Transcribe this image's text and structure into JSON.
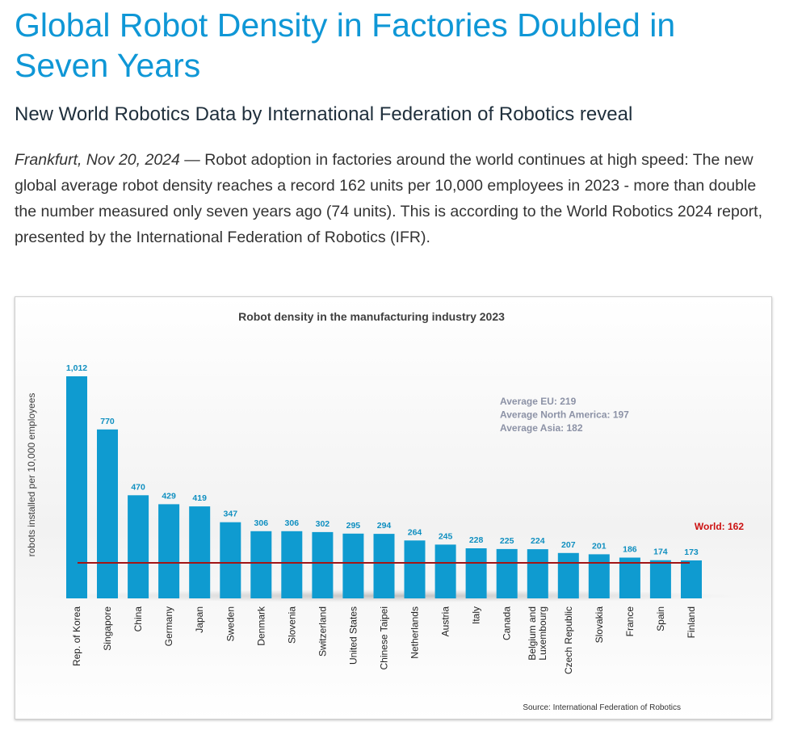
{
  "article": {
    "headline": "Global Robot Density in Factories Doubled in Seven Years",
    "subheadline": "New World Robotics Data by International Federation of Robotics reveal",
    "dateline": "Frankfurt, Nov 20, 2024",
    "body": " — Robot adoption in factories around the world continues at high speed: The new global average robot density reaches a record 162 units per 10,000 employees in 2023 - more than double the number measured only seven years ago (74 units). This is according to the World Robotics 2024 report, presented by the International Federation of Robotics (IFR)."
  },
  "chart_data": {
    "type": "bar",
    "title": "Robot density in the manufacturing industry 2023",
    "ylabel": "robots installed per 10,000 employees",
    "xlabel": "",
    "categories": [
      "Rep. of Korea",
      "Singapore",
      "China",
      "Germany",
      "Japan",
      "Sweden",
      "Denmark",
      "Slovenia",
      "Switzerland",
      "United States",
      "Chinese Taipei",
      "Netherlands",
      "Austria",
      "Italy",
      "Canada",
      "Belgium and Luxembourg",
      "Czech Republic",
      "Slovakia",
      "France",
      "Spain",
      "Finland"
    ],
    "values": [
      1012,
      770,
      470,
      429,
      419,
      347,
      306,
      306,
      302,
      295,
      294,
      264,
      245,
      228,
      225,
      224,
      207,
      201,
      186,
      174,
      173
    ],
    "value_labels": [
      "1,012",
      "770",
      "470",
      "429",
      "419",
      "347",
      "306",
      "306",
      "302",
      "295",
      "294",
      "264",
      "245",
      "228",
      "225",
      "224",
      "207",
      "201",
      "186",
      "174",
      "173"
    ],
    "reference_line": {
      "label": "World: 162",
      "value": 162,
      "color": "#a31515"
    },
    "annotations": [
      "Average EU: 219",
      "Average North America: 197",
      "Average Asia: 182"
    ],
    "source": "Source: International Federation of Robotics",
    "bar_color": "#0f9bd0",
    "label_color": "#0f8fc0",
    "grid": false,
    "legend": "none"
  }
}
